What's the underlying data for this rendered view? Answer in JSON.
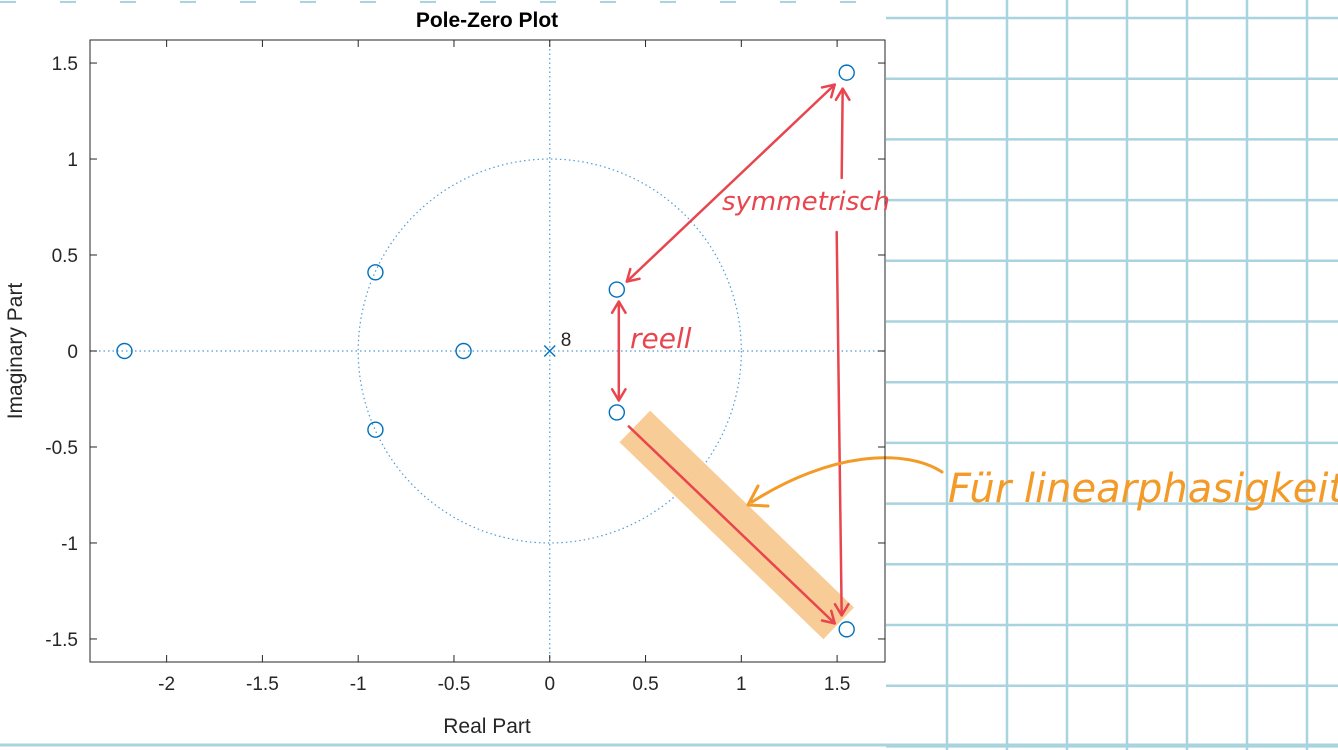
{
  "chart_data": {
    "type": "scatter",
    "title": "Pole-Zero Plot",
    "xlabel": "Real Part",
    "ylabel": "Imaginary Part",
    "xlim": [
      -2.4,
      1.75
    ],
    "ylim": [
      -1.62,
      1.62
    ],
    "x_ticks": [
      -2,
      -1.5,
      -1,
      -0.5,
      0,
      0.5,
      1,
      1.5
    ],
    "x_tick_labels": [
      "-2",
      "-1.5",
      "-1",
      "-0.5",
      "0",
      "0.5",
      "1",
      "1.5"
    ],
    "y_ticks": [
      1.5,
      1,
      0.5,
      0,
      -0.5,
      -1,
      -1.5
    ],
    "y_tick_labels": [
      "1.5",
      "1",
      "0.5",
      "0",
      "-0.5",
      "-1",
      "-1.5"
    ],
    "unit_circle": true,
    "zeros": [
      {
        "x": -2.22,
        "y": 0
      },
      {
        "x": -0.45,
        "y": 0
      },
      {
        "x": -0.91,
        "y": 0.41
      },
      {
        "x": -0.91,
        "y": -0.41
      },
      {
        "x": 0.35,
        "y": 0.32
      },
      {
        "x": 0.35,
        "y": -0.32
      },
      {
        "x": 1.55,
        "y": 1.45
      },
      {
        "x": 1.55,
        "y": -1.45
      }
    ],
    "poles": [
      {
        "x": 0,
        "y": 0,
        "multiplicity_label": "8"
      }
    ],
    "colors": {
      "markers": "#0072BD",
      "axes": "#262626",
      "annotation_red": "#E8454F",
      "annotation_orange": "#F39A28",
      "highlight": "#F8C990",
      "grid_paper": "#A9D3DF"
    }
  },
  "annotations": {
    "symmetric": "symmetrisch",
    "real": "reell",
    "linear_phase": "Für linearphasigkeit"
  }
}
